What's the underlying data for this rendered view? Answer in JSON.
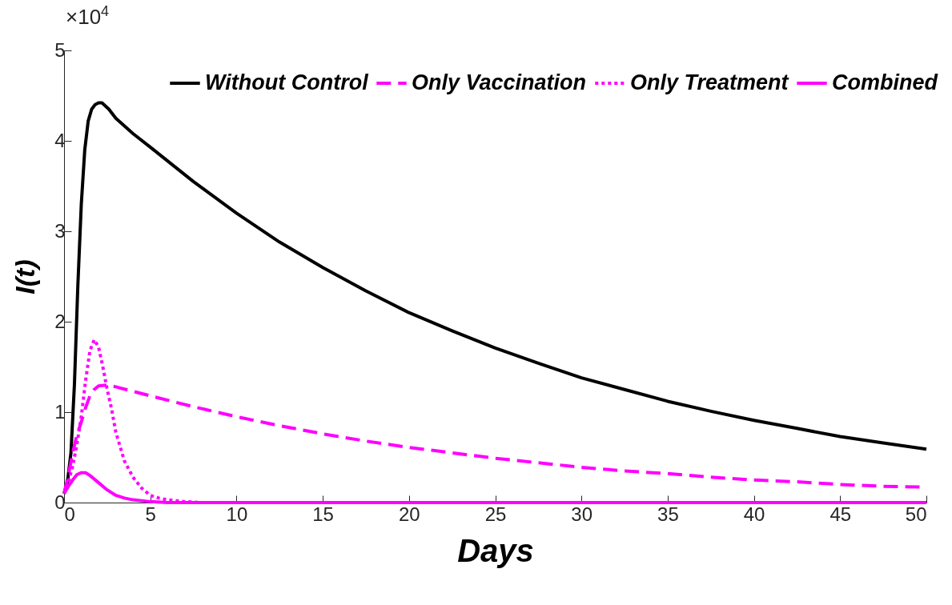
{
  "chart_data": {
    "type": "line",
    "xlabel": "Days",
    "ylabel": "I(t)",
    "annotations": [
      "×10$^{4}$"
    ],
    "xlim": [
      0,
      50
    ],
    "xticks": [
      0,
      5,
      10,
      15,
      20,
      25,
      30,
      35,
      40,
      45,
      50
    ],
    "ylim": [
      0,
      5
    ],
    "yticks": [
      0,
      1,
      2,
      3,
      4,
      5
    ],
    "grid": false,
    "legend": "top",
    "marker": "none",
    "series": [
      {
        "name": "Without Control",
        "color": "#000000",
        "line_style": "solid",
        "x": [
          0,
          0.2,
          0.4,
          0.6,
          0.8,
          1.0,
          1.2,
          1.4,
          1.6,
          1.8,
          2.0,
          2.2,
          2.6,
          3,
          4,
          5,
          7.5,
          10,
          12.5,
          15,
          17.5,
          20,
          22.5,
          25,
          27.5,
          30,
          32.5,
          35,
          37.5,
          40,
          42.5,
          45,
          47.5,
          50
        ],
        "values": [
          0.1,
          0.23,
          0.55,
          1.3,
          2.4,
          3.3,
          3.9,
          4.22,
          4.35,
          4.4,
          4.42,
          4.42,
          4.35,
          4.25,
          4.08,
          3.93,
          3.55,
          3.2,
          2.88,
          2.6,
          2.34,
          2.1,
          1.9,
          1.71,
          1.54,
          1.38,
          1.25,
          1.12,
          1.01,
          0.91,
          0.82,
          0.73,
          0.66,
          0.59
        ]
      },
      {
        "name": "Only Vaccination",
        "color": "#ff00ff",
        "line_style": "dashed",
        "x": [
          0,
          0.25,
          0.5,
          0.75,
          1,
          1.25,
          1.5,
          1.75,
          2,
          2.5,
          3,
          4,
          5,
          7.5,
          10,
          12.5,
          15,
          17.5,
          20,
          22.5,
          25,
          27.5,
          30,
          32.5,
          35,
          37.5,
          40,
          42.5,
          45,
          47.5,
          50
        ],
        "values": [
          0.1,
          0.3,
          0.55,
          0.75,
          0.89,
          1.05,
          1.18,
          1.25,
          1.29,
          1.3,
          1.28,
          1.23,
          1.18,
          1.06,
          0.95,
          0.85,
          0.76,
          0.68,
          0.61,
          0.55,
          0.49,
          0.44,
          0.39,
          0.35,
          0.32,
          0.28,
          0.25,
          0.23,
          0.2,
          0.18,
          0.17
        ]
      },
      {
        "name": "Only Treatment",
        "color": "#ff00ff",
        "line_style": "dotted",
        "x": [
          0,
          0.25,
          0.5,
          0.75,
          1,
          1.25,
          1.5,
          1.75,
          2,
          2.25,
          2.5,
          2.75,
          3,
          3.5,
          4,
          4.5,
          5,
          5.5,
          6,
          7,
          8,
          10,
          15,
          20,
          30,
          40,
          50
        ],
        "values": [
          0.1,
          0.23,
          0.4,
          0.65,
          0.95,
          1.35,
          1.68,
          1.8,
          1.72,
          1.5,
          1.25,
          1.04,
          0.78,
          0.46,
          0.28,
          0.16,
          0.08,
          0.05,
          0.03,
          0.01,
          0,
          0,
          0,
          0,
          0,
          0,
          0
        ]
      },
      {
        "name": "Combined",
        "color": "#ff00ff",
        "line_style": "solid",
        "x": [
          0,
          0.25,
          0.5,
          0.75,
          1,
          1.25,
          1.5,
          2,
          2.5,
          3,
          3.5,
          4,
          5,
          6,
          8,
          10,
          20,
          30,
          40,
          50
        ],
        "values": [
          0.1,
          0.18,
          0.25,
          0.31,
          0.33,
          0.33,
          0.3,
          0.22,
          0.14,
          0.08,
          0.05,
          0.03,
          0.01,
          0,
          0,
          0,
          0,
          0,
          0,
          0
        ]
      }
    ]
  }
}
